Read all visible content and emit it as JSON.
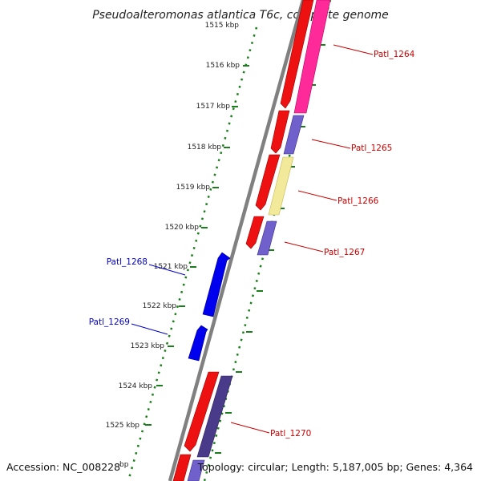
{
  "title": "Pseudoalteromonas atlantica T6c, complete genome",
  "ticks": [
    "1515 kbp",
    "1516 kbp",
    "1517 kbp",
    "1518 kbp",
    "1519 kbp",
    "1520 kbp",
    "1521 kbp",
    "1522 kbp",
    "1523 kbp",
    "1524 kbp",
    "1525 kbp"
  ],
  "genes": [
    {
      "label": "Patl_1264",
      "color": "#cc0000"
    },
    {
      "label": "Patl_1265",
      "color": "#cc0000"
    },
    {
      "label": "Patl_1266",
      "color": "#cc0000"
    },
    {
      "label": "Patl_1267",
      "color": "#cc0000"
    },
    {
      "label": "Patl_1268",
      "color": "#0000cc"
    },
    {
      "label": "Patl_1269",
      "color": "#0000cc"
    },
    {
      "label": "Patl_1270",
      "color": "#cc0000"
    }
  ],
  "footer": {
    "accession": "Accession: NC_008228",
    "bp_unit": "bp",
    "topology": "Topology: circular; Length: 5,187,005 bp; Genes: 4,364"
  },
  "colors": {
    "forward_gene": "#ee0000",
    "reverse_gene": "#0000ee",
    "ruler_dots": "#1a7f1a",
    "backbone": "#808080"
  }
}
